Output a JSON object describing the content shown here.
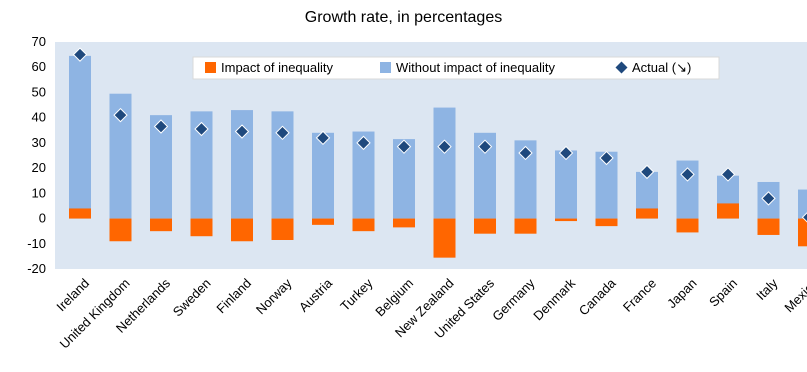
{
  "chart_data": {
    "type": "bar",
    "title": "Growth rate, in percentages",
    "xlabel": "",
    "ylabel": "",
    "ylim": [
      -20,
      70
    ],
    "yticks": [
      70,
      60,
      50,
      40,
      30,
      20,
      10,
      0,
      -10,
      -20
    ],
    "grid": false,
    "legend_position": "top-right",
    "categories": [
      "Ireland",
      "United Kingdom",
      "Netherlands",
      "Sweden",
      "Finland",
      "Norway",
      "Austria",
      "Turkey",
      "Belgium",
      "New Zealand",
      "United States",
      "Germany",
      "Denmark",
      "Canada",
      "France",
      "Japan",
      "Spain",
      "Italy",
      "Mexico"
    ],
    "series": [
      {
        "name": "Impact of inequality",
        "kind": "bar",
        "color": "#FF6600",
        "values": [
          4,
          -9,
          -5,
          -7,
          -9,
          -8.5,
          -2.5,
          -5,
          -3.5,
          -15.5,
          -6,
          -6,
          -1,
          -3,
          4,
          -5.5,
          6,
          -6.5,
          -11
        ]
      },
      {
        "name": "Without impact of inequality",
        "kind": "bar",
        "color": "#8EB4E3",
        "values": [
          64.5,
          49.5,
          41,
          42.5,
          43,
          42.5,
          34,
          34.5,
          31.5,
          44,
          34,
          31,
          27,
          26.5,
          18.5,
          23,
          17,
          14.5,
          11.5
        ]
      },
      {
        "name": "Actual (↘)",
        "kind": "marker",
        "color": "#1F497D",
        "values": [
          65,
          41,
          36.5,
          35.5,
          34.5,
          34,
          32,
          30,
          28.5,
          28.5,
          28.5,
          26,
          26,
          24,
          18.5,
          17.5,
          17.5,
          8,
          0.5
        ]
      }
    ]
  }
}
